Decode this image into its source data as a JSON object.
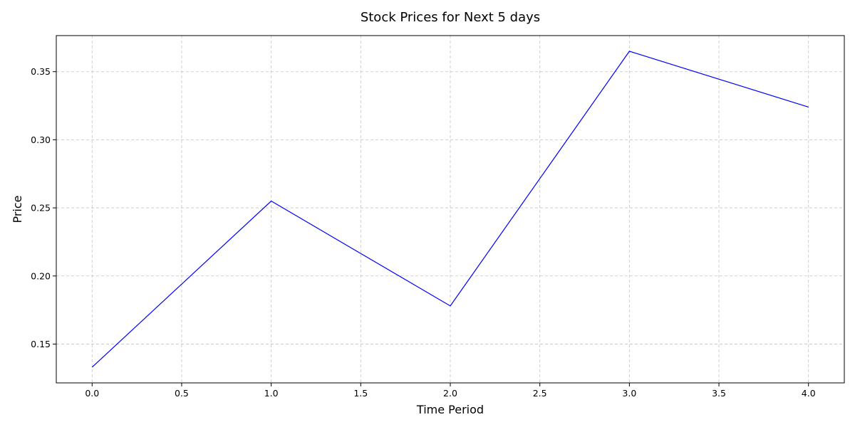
{
  "chart_data": {
    "type": "line",
    "title": "Stock Prices for Next 5 days",
    "xlabel": "Time Period",
    "ylabel": "Price",
    "x": [
      0,
      1,
      2,
      3,
      4
    ],
    "series": [
      {
        "values": [
          0.133,
          0.255,
          0.178,
          0.365,
          0.324
        ],
        "color": "#0000ff"
      }
    ],
    "xlim": [
      -0.2,
      4.2
    ],
    "ylim": [
      0.1215,
      0.3765
    ],
    "xticks": [
      0.0,
      0.5,
      1.0,
      1.5,
      2.0,
      2.5,
      3.0,
      3.5,
      4.0
    ],
    "xtick_labels": [
      "0.0",
      "0.5",
      "1.0",
      "1.5",
      "2.0",
      "2.5",
      "3.0",
      "3.5",
      "4.0"
    ],
    "yticks": [
      0.15,
      0.2,
      0.25,
      0.3,
      0.35
    ],
    "ytick_labels": [
      "0.15",
      "0.20",
      "0.25",
      "0.30",
      "0.35"
    ],
    "grid": true,
    "grid_style": "dashed"
  }
}
